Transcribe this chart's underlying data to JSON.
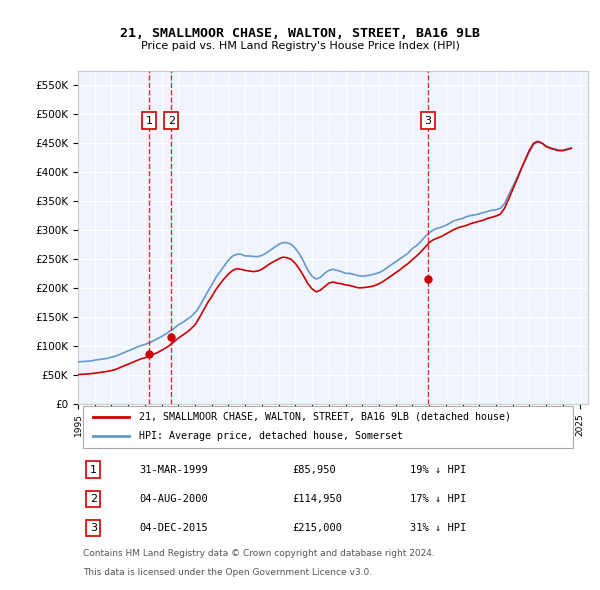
{
  "title": "21, SMALLMOOR CHASE, WALTON, STREET, BA16 9LB",
  "subtitle": "Price paid vs. HM Land Registry's House Price Index (HPI)",
  "ylabel": "",
  "ylim": [
    0,
    575000
  ],
  "yticks": [
    0,
    50000,
    100000,
    150000,
    200000,
    250000,
    300000,
    350000,
    400000,
    450000,
    500000,
    550000
  ],
  "xlim_start": 1995.0,
  "xlim_end": 2025.5,
  "background_color": "#ffffff",
  "plot_bg_color": "#f0f4ff",
  "grid_color": "#ffffff",
  "transactions": [
    {
      "date_num": 1999.25,
      "price": 85950,
      "label": "1"
    },
    {
      "date_num": 2000.58,
      "price": 114950,
      "label": "2"
    },
    {
      "date_num": 2015.92,
      "price": 215000,
      "label": "3"
    }
  ],
  "transaction_color": "#cc0000",
  "hpi_color": "#6699cc",
  "transaction_line_color": "#cc0000",
  "legend_entries": [
    "21, SMALLMOOR CHASE, WALTON, STREET, BA16 9LB (detached house)",
    "HPI: Average price, detached house, Somerset"
  ],
  "table_entries": [
    {
      "label": "1",
      "date": "31-MAR-1999",
      "price": "£85,950",
      "hpi_note": "19% ↓ HPI"
    },
    {
      "label": "2",
      "date": "04-AUG-2000",
      "price": "£114,950",
      "hpi_note": "17% ↓ HPI"
    },
    {
      "label": "3",
      "date": "04-DEC-2015",
      "price": "£215,000",
      "hpi_note": "31% ↓ HPI"
    }
  ],
  "footer_line1": "Contains HM Land Registry data © Crown copyright and database right 2024.",
  "footer_line2": "This data is licensed under the Open Government Licence v3.0.",
  "hpi_data": {
    "years": [
      1995.0,
      1995.25,
      1995.5,
      1995.75,
      1996.0,
      1996.25,
      1996.5,
      1996.75,
      1997.0,
      1997.25,
      1997.5,
      1997.75,
      1998.0,
      1998.25,
      1998.5,
      1998.75,
      1999.0,
      1999.25,
      1999.5,
      1999.75,
      2000.0,
      2000.25,
      2000.5,
      2000.75,
      2001.0,
      2001.25,
      2001.5,
      2001.75,
      2002.0,
      2002.25,
      2002.5,
      2002.75,
      2003.0,
      2003.25,
      2003.5,
      2003.75,
      2004.0,
      2004.25,
      2004.5,
      2004.75,
      2005.0,
      2005.25,
      2005.5,
      2005.75,
      2006.0,
      2006.25,
      2006.5,
      2006.75,
      2007.0,
      2007.25,
      2007.5,
      2007.75,
      2008.0,
      2008.25,
      2008.5,
      2008.75,
      2009.0,
      2009.25,
      2009.5,
      2009.75,
      2010.0,
      2010.25,
      2010.5,
      2010.75,
      2011.0,
      2011.25,
      2011.5,
      2011.75,
      2012.0,
      2012.25,
      2012.5,
      2012.75,
      2013.0,
      2013.25,
      2013.5,
      2013.75,
      2014.0,
      2014.25,
      2014.5,
      2014.75,
      2015.0,
      2015.25,
      2015.5,
      2015.75,
      2016.0,
      2016.25,
      2016.5,
      2016.75,
      2017.0,
      2017.25,
      2017.5,
      2017.75,
      2018.0,
      2018.25,
      2018.5,
      2018.75,
      2019.0,
      2019.25,
      2019.5,
      2019.75,
      2020.0,
      2020.25,
      2020.5,
      2020.75,
      2021.0,
      2021.25,
      2021.5,
      2021.75,
      2022.0,
      2022.25,
      2022.5,
      2022.75,
      2023.0,
      2023.25,
      2023.5,
      2023.75,
      2024.0,
      2024.25,
      2024.5
    ],
    "values": [
      72000,
      72500,
      73000,
      73500,
      75000,
      76000,
      77000,
      78000,
      80000,
      82000,
      85000,
      88000,
      91000,
      94000,
      97000,
      100000,
      102000,
      105000,
      108000,
      112000,
      116000,
      120000,
      125000,
      130000,
      136000,
      140000,
      145000,
      150000,
      157000,
      167000,
      180000,
      193000,
      205000,
      218000,
      228000,
      238000,
      248000,
      255000,
      258000,
      258000,
      255000,
      255000,
      254000,
      254000,
      256000,
      260000,
      265000,
      270000,
      275000,
      278000,
      278000,
      275000,
      268000,
      258000,
      245000,
      230000,
      220000,
      215000,
      218000,
      225000,
      230000,
      232000,
      230000,
      228000,
      225000,
      225000,
      223000,
      221000,
      220000,
      221000,
      222000,
      224000,
      226000,
      230000,
      235000,
      240000,
      245000,
      250000,
      255000,
      260000,
      268000,
      273000,
      280000,
      288000,
      295000,
      300000,
      303000,
      305000,
      308000,
      312000,
      316000,
      318000,
      320000,
      323000,
      325000,
      326000,
      328000,
      330000,
      332000,
      334000,
      335000,
      337000,
      345000,
      360000,
      375000,
      390000,
      405000,
      420000,
      435000,
      448000,
      452000,
      450000,
      445000,
      442000,
      440000,
      438000,
      438000,
      440000,
      442000
    ]
  },
  "property_hpi_data": {
    "years": [
      1995.0,
      1995.25,
      1995.5,
      1995.75,
      1996.0,
      1996.25,
      1996.5,
      1996.75,
      1997.0,
      1997.25,
      1997.5,
      1997.75,
      1998.0,
      1998.25,
      1998.5,
      1998.75,
      1999.0,
      1999.25,
      1999.5,
      1999.75,
      2000.0,
      2000.25,
      2000.5,
      2000.75,
      2001.0,
      2001.25,
      2001.5,
      2001.75,
      2002.0,
      2002.25,
      2002.5,
      2002.75,
      2003.0,
      2003.25,
      2003.5,
      2003.75,
      2004.0,
      2004.25,
      2004.5,
      2004.75,
      2005.0,
      2005.25,
      2005.5,
      2005.75,
      2006.0,
      2006.25,
      2006.5,
      2006.75,
      2007.0,
      2007.25,
      2007.5,
      2007.75,
      2008.0,
      2008.25,
      2008.5,
      2008.75,
      2009.0,
      2009.25,
      2009.5,
      2009.75,
      2010.0,
      2010.25,
      2010.5,
      2010.75,
      2011.0,
      2011.25,
      2011.5,
      2011.75,
      2012.0,
      2012.25,
      2012.5,
      2012.75,
      2013.0,
      2013.25,
      2013.5,
      2013.75,
      2014.0,
      2014.25,
      2014.5,
      2014.75,
      2015.0,
      2015.25,
      2015.5,
      2015.75,
      2016.0,
      2016.25,
      2016.5,
      2016.75,
      2017.0,
      2017.25,
      2017.5,
      2017.75,
      2018.0,
      2018.25,
      2018.5,
      2018.75,
      2019.0,
      2019.25,
      2019.5,
      2019.75,
      2020.0,
      2020.25,
      2020.5,
      2020.75,
      2021.0,
      2021.25,
      2021.5,
      2021.75,
      2022.0,
      2022.25,
      2022.5,
      2022.75,
      2023.0,
      2023.25,
      2023.5,
      2023.75,
      2024.0,
      2024.25,
      2024.5
    ],
    "values": [
      50000,
      50500,
      51000,
      51500,
      52500,
      53500,
      54500,
      55500,
      57000,
      59000,
      62000,
      65000,
      68000,
      71000,
      74000,
      77000,
      79000,
      82000,
      85000,
      88000,
      92000,
      96000,
      101000,
      107000,
      113000,
      118000,
      123000,
      129000,
      136000,
      148000,
      161000,
      174000,
      185000,
      197000,
      207000,
      216000,
      224000,
      230000,
      233000,
      232000,
      230000,
      229000,
      228000,
      229000,
      232000,
      237000,
      242000,
      246000,
      250000,
      253000,
      252000,
      249000,
      242000,
      232000,
      220000,
      207000,
      198000,
      193000,
      196000,
      202000,
      208000,
      210000,
      208000,
      207000,
      205000,
      204000,
      202000,
      200000,
      200000,
      201000,
      202000,
      204000,
      207000,
      211000,
      216000,
      221000,
      226000,
      231000,
      237000,
      242000,
      249000,
      255000,
      262000,
      270000,
      278000,
      283000,
      286000,
      289000,
      293000,
      297000,
      301000,
      304000,
      306000,
      308000,
      311000,
      313000,
      315000,
      317000,
      320000,
      322000,
      324000,
      327000,
      337000,
      353000,
      370000,
      387000,
      405000,
      422000,
      438000,
      450000,
      453000,
      450000,
      444000,
      441000,
      439000,
      437000,
      437000,
      439000,
      441000
    ]
  }
}
